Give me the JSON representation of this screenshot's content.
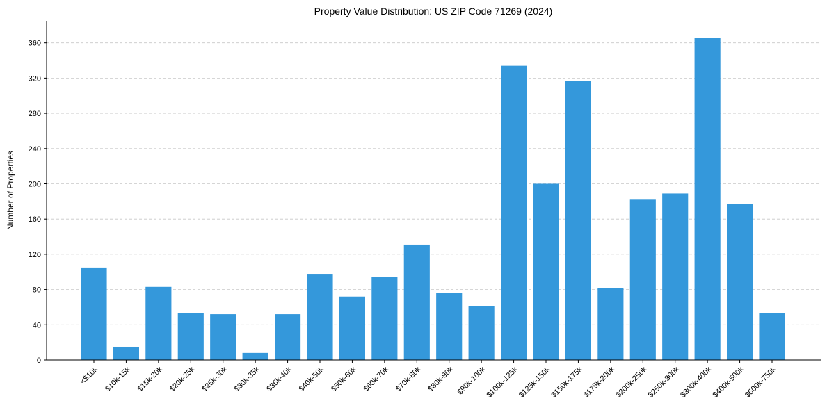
{
  "chart_data": {
    "type": "bar",
    "title": "Property Value Distribution: US ZIP Code 71269 (2024)",
    "xlabel": "",
    "ylabel": "Number of Properties",
    "categories": [
      "<$10k",
      "$10k-15k",
      "$15k-20k",
      "$20k-25k",
      "$25k-30k",
      "$30k-35k",
      "$35k-40k",
      "$40k-50k",
      "$50k-60k",
      "$60k-70k",
      "$70k-80k",
      "$80k-90k",
      "$90k-100k",
      "$100k-125k",
      "$125k-150k",
      "$150k-175k",
      "$175k-200k",
      "$200k-250k",
      "$250k-300k",
      "$300k-400k",
      "$400k-500k",
      "$500k-750k"
    ],
    "values": [
      105,
      15,
      83,
      53,
      52,
      8,
      52,
      97,
      72,
      94,
      131,
      76,
      61,
      334,
      200,
      317,
      82,
      182,
      189,
      366,
      177,
      53
    ],
    "ylim": [
      0,
      385
    ],
    "yticks": [
      0,
      40,
      80,
      120,
      160,
      200,
      240,
      280,
      320,
      360
    ],
    "grid": "y-dashed",
    "color": "#3498db"
  }
}
